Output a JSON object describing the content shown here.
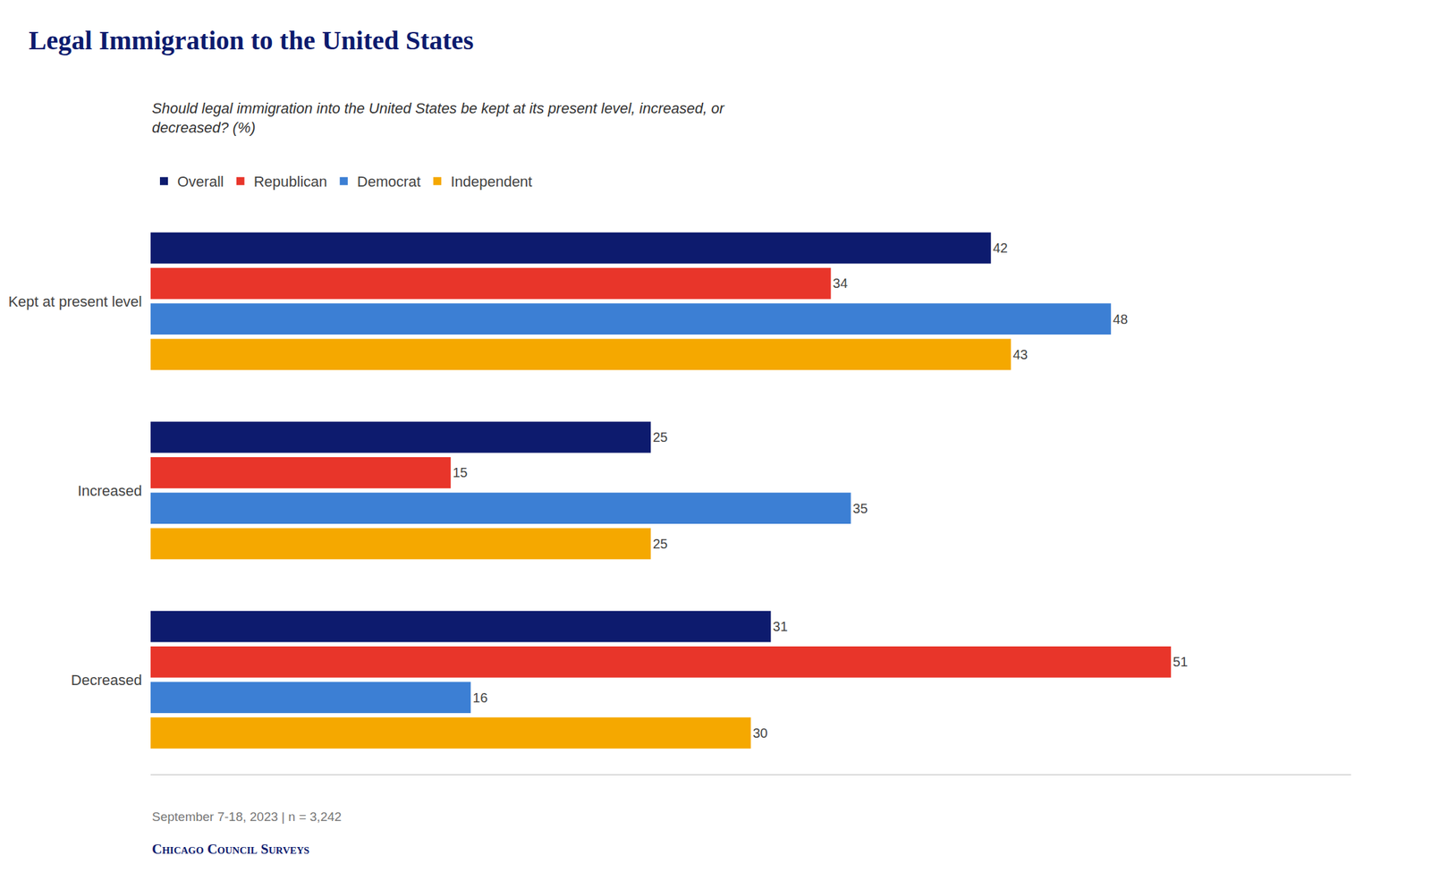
{
  "chart_data": {
    "type": "bar",
    "orientation": "horizontal",
    "title": "Legal Immigration to the United States",
    "subtitle": "Should legal immigration into the United States be kept at its present level, increased, or\ndecreased? (%)",
    "annotations": [
      "September 7-18, 2023 | n = 3,242",
      "Chicago Council Surveys"
    ],
    "categories": [
      "Kept at present level",
      "Increased",
      "Decreased"
    ],
    "series": [
      {
        "name": "Overall",
        "color": "#0d1b6e",
        "values": [
          42,
          25,
          31
        ]
      },
      {
        "name": "Republican",
        "color": "#e8352a",
        "values": [
          34,
          15,
          51
        ]
      },
      {
        "name": "Democrat",
        "color": "#3c7fd4",
        "values": [
          48,
          35,
          16
        ]
      },
      {
        "name": "Independent",
        "color": "#f5a800",
        "values": [
          43,
          25,
          30
        ]
      }
    ],
    "xlim": [
      0,
      60
    ],
    "grid": false,
    "legend": "top",
    "data_labels": true,
    "tick_labels": "y"
  }
}
